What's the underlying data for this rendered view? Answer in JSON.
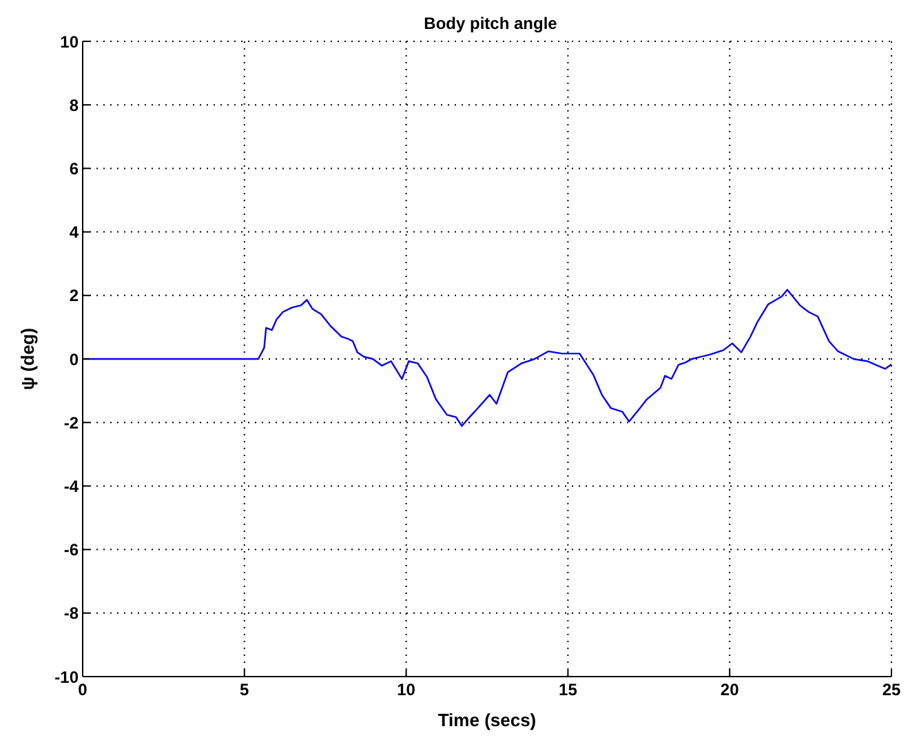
{
  "chart_data": {
    "type": "line",
    "title": "Body pitch angle",
    "xlabel": "Time (secs)",
    "ylabel": "ψ (deg)",
    "xlim": [
      0,
      25
    ],
    "xticks": [
      0,
      5,
      10,
      15,
      20,
      25
    ],
    "ylim": [
      -10,
      10
    ],
    "yticks": [
      -10,
      -8,
      -6,
      -4,
      -2,
      0,
      2,
      4,
      6,
      8,
      10
    ],
    "grid": true,
    "marker": "none",
    "line_style": "solid",
    "series": [
      {
        "color": "#0000ff",
        "x": [
          0,
          5.43,
          5.61,
          5.67,
          5.85,
          5.99,
          6.19,
          6.47,
          6.75,
          6.93,
          7.1,
          7.37,
          7.65,
          8.0,
          8.21,
          8.35,
          8.49,
          8.69,
          8.97,
          9.25,
          9.53,
          9.87,
          10.08,
          10.36,
          10.64,
          10.92,
          11.26,
          11.54,
          11.72,
          11.96,
          12.17,
          12.58,
          12.79,
          13.14,
          13.56,
          13.97,
          14.39,
          14.81,
          15.36,
          15.78,
          16.05,
          16.33,
          16.68,
          16.89,
          17.17,
          17.44,
          17.86,
          18.0,
          18.2,
          18.42,
          18.63,
          18.83,
          19.39,
          19.81,
          20.08,
          20.36,
          20.64,
          20.85,
          21.19,
          21.61,
          21.78,
          22.17,
          22.44,
          22.72,
          23.07,
          23.35,
          23.83,
          24.25,
          24.81,
          25
        ],
        "values": [
          0,
          0,
          0.35,
          0.98,
          0.91,
          1.24,
          1.48,
          1.62,
          1.69,
          1.86,
          1.58,
          1.41,
          1.05,
          0.7,
          0.63,
          0.56,
          0.21,
          0.07,
          0,
          -0.21,
          -0.07,
          -0.63,
          -0.07,
          -0.14,
          -0.56,
          -1.27,
          -1.76,
          -1.83,
          -2.11,
          -1.83,
          -1.6,
          -1.13,
          -1.41,
          -0.42,
          -0.14,
          0,
          0.24,
          0.17,
          0.17,
          -0.49,
          -1.13,
          -1.55,
          -1.66,
          -1.97,
          -1.62,
          -1.27,
          -0.91,
          -0.53,
          -0.63,
          -0.18,
          -0.11,
          0,
          0.14,
          0.28,
          0.49,
          0.21,
          0.7,
          1.15,
          1.72,
          1.97,
          2.18,
          1.69,
          1.48,
          1.34,
          0.56,
          0.24,
          0,
          -0.07,
          -0.31,
          -0.17
        ]
      }
    ]
  }
}
